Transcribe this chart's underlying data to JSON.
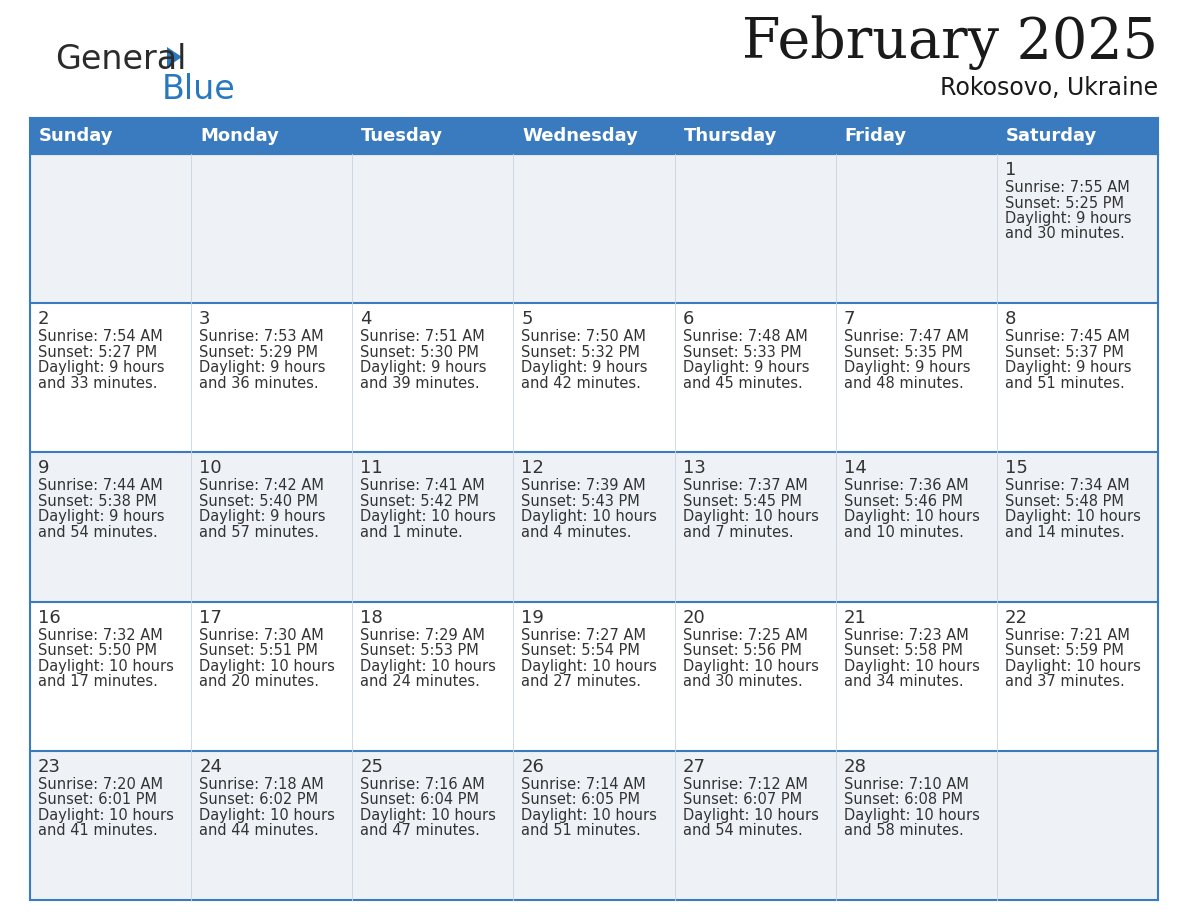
{
  "title": "February 2025",
  "subtitle": "Rokosovo, Ukraine",
  "header_bg": "#3a7bbf",
  "header_text_color": "#ffffff",
  "cell_bg_light": "#eef2f7",
  "cell_bg_white": "#ffffff",
  "border_color": "#3a7bbf",
  "text_color": "#333333",
  "days_of_week": [
    "Sunday",
    "Monday",
    "Tuesday",
    "Wednesday",
    "Thursday",
    "Friday",
    "Saturday"
  ],
  "calendar": [
    [
      {
        "day": null,
        "sunrise": null,
        "sunset": null,
        "daylight": null
      },
      {
        "day": null,
        "sunrise": null,
        "sunset": null,
        "daylight": null
      },
      {
        "day": null,
        "sunrise": null,
        "sunset": null,
        "daylight": null
      },
      {
        "day": null,
        "sunrise": null,
        "sunset": null,
        "daylight": null
      },
      {
        "day": null,
        "sunrise": null,
        "sunset": null,
        "daylight": null
      },
      {
        "day": null,
        "sunrise": null,
        "sunset": null,
        "daylight": null
      },
      {
        "day": 1,
        "sunrise": "7:55 AM",
        "sunset": "5:25 PM",
        "daylight": "9 hours\nand 30 minutes."
      }
    ],
    [
      {
        "day": 2,
        "sunrise": "7:54 AM",
        "sunset": "5:27 PM",
        "daylight": "9 hours\nand 33 minutes."
      },
      {
        "day": 3,
        "sunrise": "7:53 AM",
        "sunset": "5:29 PM",
        "daylight": "9 hours\nand 36 minutes."
      },
      {
        "day": 4,
        "sunrise": "7:51 AM",
        "sunset": "5:30 PM",
        "daylight": "9 hours\nand 39 minutes."
      },
      {
        "day": 5,
        "sunrise": "7:50 AM",
        "sunset": "5:32 PM",
        "daylight": "9 hours\nand 42 minutes."
      },
      {
        "day": 6,
        "sunrise": "7:48 AM",
        "sunset": "5:33 PM",
        "daylight": "9 hours\nand 45 minutes."
      },
      {
        "day": 7,
        "sunrise": "7:47 AM",
        "sunset": "5:35 PM",
        "daylight": "9 hours\nand 48 minutes."
      },
      {
        "day": 8,
        "sunrise": "7:45 AM",
        "sunset": "5:37 PM",
        "daylight": "9 hours\nand 51 minutes."
      }
    ],
    [
      {
        "day": 9,
        "sunrise": "7:44 AM",
        "sunset": "5:38 PM",
        "daylight": "9 hours\nand 54 minutes."
      },
      {
        "day": 10,
        "sunrise": "7:42 AM",
        "sunset": "5:40 PM",
        "daylight": "9 hours\nand 57 minutes."
      },
      {
        "day": 11,
        "sunrise": "7:41 AM",
        "sunset": "5:42 PM",
        "daylight": "10 hours\nand 1 minute."
      },
      {
        "day": 12,
        "sunrise": "7:39 AM",
        "sunset": "5:43 PM",
        "daylight": "10 hours\nand 4 minutes."
      },
      {
        "day": 13,
        "sunrise": "7:37 AM",
        "sunset": "5:45 PM",
        "daylight": "10 hours\nand 7 minutes."
      },
      {
        "day": 14,
        "sunrise": "7:36 AM",
        "sunset": "5:46 PM",
        "daylight": "10 hours\nand 10 minutes."
      },
      {
        "day": 15,
        "sunrise": "7:34 AM",
        "sunset": "5:48 PM",
        "daylight": "10 hours\nand 14 minutes."
      }
    ],
    [
      {
        "day": 16,
        "sunrise": "7:32 AM",
        "sunset": "5:50 PM",
        "daylight": "10 hours\nand 17 minutes."
      },
      {
        "day": 17,
        "sunrise": "7:30 AM",
        "sunset": "5:51 PM",
        "daylight": "10 hours\nand 20 minutes."
      },
      {
        "day": 18,
        "sunrise": "7:29 AM",
        "sunset": "5:53 PM",
        "daylight": "10 hours\nand 24 minutes."
      },
      {
        "day": 19,
        "sunrise": "7:27 AM",
        "sunset": "5:54 PM",
        "daylight": "10 hours\nand 27 minutes."
      },
      {
        "day": 20,
        "sunrise": "7:25 AM",
        "sunset": "5:56 PM",
        "daylight": "10 hours\nand 30 minutes."
      },
      {
        "day": 21,
        "sunrise": "7:23 AM",
        "sunset": "5:58 PM",
        "daylight": "10 hours\nand 34 minutes."
      },
      {
        "day": 22,
        "sunrise": "7:21 AM",
        "sunset": "5:59 PM",
        "daylight": "10 hours\nand 37 minutes."
      }
    ],
    [
      {
        "day": 23,
        "sunrise": "7:20 AM",
        "sunset": "6:01 PM",
        "daylight": "10 hours\nand 41 minutes."
      },
      {
        "day": 24,
        "sunrise": "7:18 AM",
        "sunset": "6:02 PM",
        "daylight": "10 hours\nand 44 minutes."
      },
      {
        "day": 25,
        "sunrise": "7:16 AM",
        "sunset": "6:04 PM",
        "daylight": "10 hours\nand 47 minutes."
      },
      {
        "day": 26,
        "sunrise": "7:14 AM",
        "sunset": "6:05 PM",
        "daylight": "10 hours\nand 51 minutes."
      },
      {
        "day": 27,
        "sunrise": "7:12 AM",
        "sunset": "6:07 PM",
        "daylight": "10 hours\nand 54 minutes."
      },
      {
        "day": 28,
        "sunrise": "7:10 AM",
        "sunset": "6:08 PM",
        "daylight": "10 hours\nand 58 minutes."
      },
      {
        "day": null,
        "sunrise": null,
        "sunset": null,
        "daylight": null
      }
    ]
  ],
  "logo_text_general": "General",
  "logo_text_blue": "Blue",
  "logo_color_general": "#2b2b2b",
  "logo_color_blue": "#2878c0",
  "logo_triangle_color": "#2878c0",
  "title_fontsize": 40,
  "subtitle_fontsize": 17,
  "header_fontsize": 13,
  "day_num_fontsize": 13,
  "cell_text_fontsize": 10.5
}
